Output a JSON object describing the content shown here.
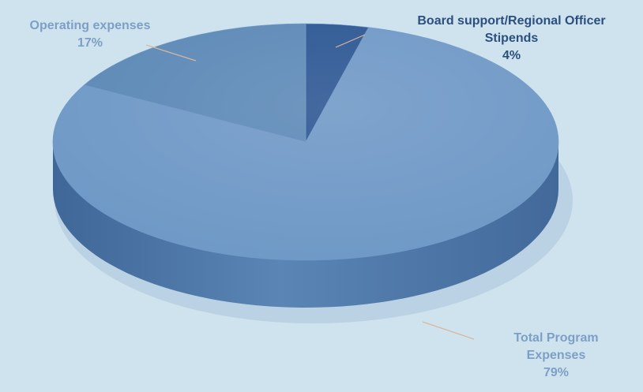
{
  "chart_data": {
    "type": "pie",
    "style": "3d",
    "slices": [
      {
        "label_lines": [
          "Board support/Regional Officer",
          "Stipends"
        ],
        "percent_text": "4%",
        "value": 4,
        "color": "#2a5592",
        "text_color": "#2b4f7e"
      },
      {
        "label_lines": [
          "Total Program",
          "Expenses"
        ],
        "percent_text": "79%",
        "value": 79,
        "color": "#6e98c6",
        "text_color": "#7d9fc6"
      },
      {
        "label_lines": [
          "Operating expenses"
        ],
        "percent_text": "17%",
        "value": 17,
        "color": "#5b88b6",
        "text_color": "#7d9fc6"
      }
    ]
  }
}
